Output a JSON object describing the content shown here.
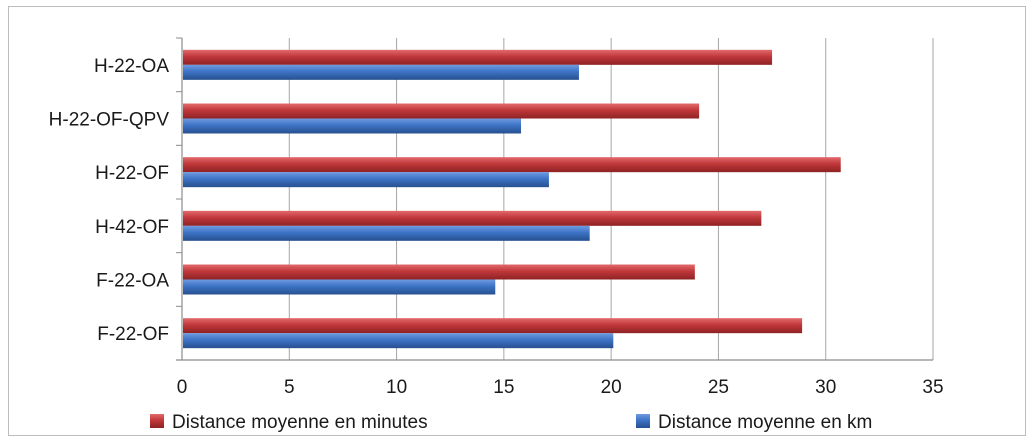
{
  "chart_data": {
    "type": "bar",
    "orientation": "horizontal",
    "categories": [
      "F-22-OF",
      "F-22-OA",
      "H-42-OF",
      "H-22-OF",
      "H-22-OF-QPV",
      "H-22-OA"
    ],
    "series": [
      {
        "name": "Distance moyenne en minutes",
        "color": "#c0373a",
        "values": [
          28.9,
          23.9,
          27.0,
          30.7,
          24.1,
          27.5
        ]
      },
      {
        "name": "Distance moyenne en km",
        "color": "#3d73c5",
        "values": [
          20.1,
          14.6,
          19.0,
          17.1,
          15.8,
          18.5
        ]
      }
    ],
    "xlim": [
      0,
      35
    ],
    "xticks": [
      "0",
      "5",
      "10",
      "15",
      "20",
      "25",
      "30",
      "35"
    ],
    "grid": "vertical",
    "legend_position": "bottom"
  }
}
